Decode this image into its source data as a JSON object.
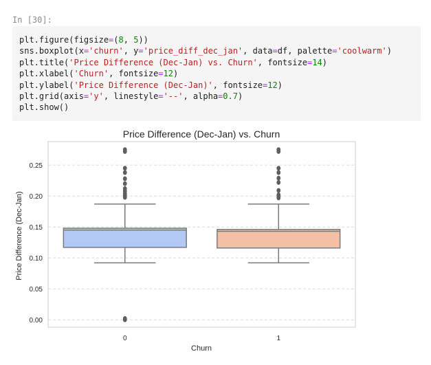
{
  "cell": {
    "prompt": "In [30]:",
    "code_lines": [
      [
        {
          "t": "plt.figure(figsize",
          "c": ""
        },
        {
          "t": "=",
          "c": "op"
        },
        {
          "t": "(",
          "c": ""
        },
        {
          "t": "8",
          "c": "num"
        },
        {
          "t": ", ",
          "c": ""
        },
        {
          "t": "5",
          "c": "num"
        },
        {
          "t": "))",
          "c": ""
        }
      ],
      [
        {
          "t": "sns.boxplot(x",
          "c": ""
        },
        {
          "t": "=",
          "c": "op"
        },
        {
          "t": "'churn'",
          "c": "str"
        },
        {
          "t": ", y",
          "c": ""
        },
        {
          "t": "=",
          "c": "op"
        },
        {
          "t": "'price_diff_dec_jan'",
          "c": "str"
        },
        {
          "t": ", data",
          "c": ""
        },
        {
          "t": "=",
          "c": "op"
        },
        {
          "t": "df, palette",
          "c": ""
        },
        {
          "t": "=",
          "c": "op"
        },
        {
          "t": "'coolwarm'",
          "c": "str"
        },
        {
          "t": ")",
          "c": ""
        }
      ],
      [
        {
          "t": "plt.title(",
          "c": ""
        },
        {
          "t": "'Price Difference (Dec-Jan) vs. Churn'",
          "c": "str"
        },
        {
          "t": ", fontsize",
          "c": ""
        },
        {
          "t": "=",
          "c": "op"
        },
        {
          "t": "14",
          "c": "num"
        },
        {
          "t": ")",
          "c": ""
        }
      ],
      [
        {
          "t": "plt.xlabel(",
          "c": ""
        },
        {
          "t": "'Churn'",
          "c": "str"
        },
        {
          "t": ", fontsize",
          "c": ""
        },
        {
          "t": "=",
          "c": "op"
        },
        {
          "t": "12",
          "c": "num"
        },
        {
          "t": ")",
          "c": ""
        }
      ],
      [
        {
          "t": "plt.ylabel(",
          "c": ""
        },
        {
          "t": "'Price Difference (Dec-Jan)'",
          "c": "str"
        },
        {
          "t": ", fontsize",
          "c": ""
        },
        {
          "t": "=",
          "c": "op"
        },
        {
          "t": "12",
          "c": "num"
        },
        {
          "t": ")",
          "c": ""
        }
      ],
      [
        {
          "t": "plt.grid(axis",
          "c": ""
        },
        {
          "t": "=",
          "c": "op"
        },
        {
          "t": "'y'",
          "c": "str"
        },
        {
          "t": ", linestyle",
          "c": ""
        },
        {
          "t": "=",
          "c": "op"
        },
        {
          "t": "'--'",
          "c": "str"
        },
        {
          "t": ", alpha",
          "c": ""
        },
        {
          "t": "=",
          "c": "op"
        },
        {
          "t": "0.7",
          "c": "num"
        },
        {
          "t": ")",
          "c": ""
        }
      ],
      [
        {
          "t": "plt.show()",
          "c": ""
        }
      ]
    ]
  },
  "chart_data": {
    "type": "box",
    "title": "Price Difference (Dec-Jan) vs. Churn",
    "xlabel": "Churn",
    "ylabel": "Price Difference (Dec-Jan)",
    "categories": [
      "0",
      "1"
    ],
    "ylim": [
      -0.012,
      0.288
    ],
    "yticks": [
      0.0,
      0.05,
      0.1,
      0.15,
      0.2,
      0.25
    ],
    "ytick_labels": [
      "0.00",
      "0.05",
      "0.10",
      "0.15",
      "0.20",
      "0.25"
    ],
    "grid": "y dashed",
    "colors": [
      "#b3c9f5",
      "#f4c0a5"
    ],
    "boxes": [
      {
        "category": "0",
        "whisker_low": 0.092,
        "q1": 0.117,
        "median": 0.145,
        "q3": 0.148,
        "whisker_high": 0.187,
        "outliers": [
          0.0,
          0.002,
          0.198,
          0.201,
          0.204,
          0.208,
          0.212,
          0.22,
          0.228,
          0.238,
          0.245,
          0.272,
          0.275
        ]
      },
      {
        "category": "1",
        "whisker_low": 0.092,
        "q1": 0.116,
        "median": 0.143,
        "q3": 0.146,
        "whisker_high": 0.187,
        "outliers": [
          0.197,
          0.2,
          0.202,
          0.209,
          0.222,
          0.229,
          0.238,
          0.245,
          0.272,
          0.275
        ]
      }
    ]
  }
}
